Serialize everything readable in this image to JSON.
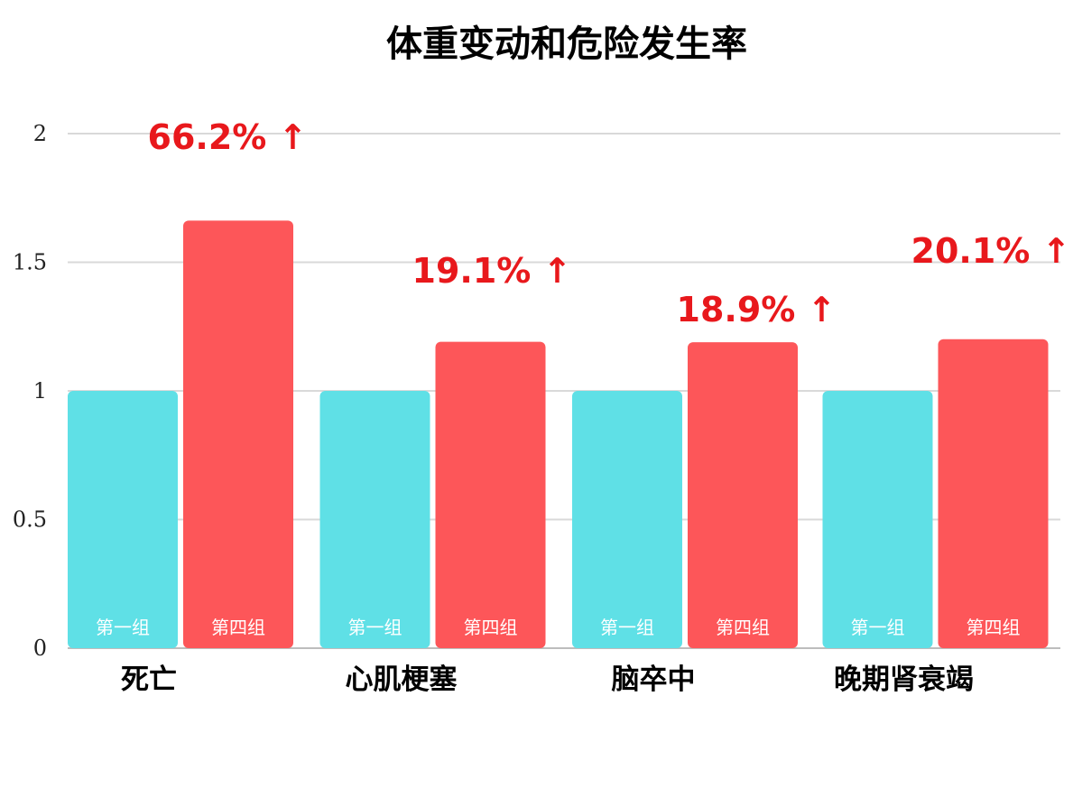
{
  "chart_data": {
    "type": "bar",
    "title": "体重变动和危险发生率",
    "categories": [
      "死亡",
      "心肌梗塞",
      "脑卒中",
      "晚期肾衰竭"
    ],
    "series": [
      {
        "name": "第一组",
        "values": [
          1.0,
          1.0,
          1.0,
          1.0
        ],
        "color": "#5fe0e6"
      },
      {
        "name": "第四组",
        "values": [
          1.662,
          1.191,
          1.189,
          1.201
        ],
        "color": "#fd5659"
      }
    ],
    "annotations": [
      "66.2% ↑",
      "19.1% ↑",
      "18.9% ↑",
      "20.1% ↑"
    ],
    "annotation_color": "#e8181c",
    "yticks": [
      "0",
      "0.5",
      "1",
      "1.5",
      "2"
    ],
    "ylim": [
      0,
      2
    ],
    "grid": true,
    "xlabel": "",
    "ylabel": ""
  }
}
